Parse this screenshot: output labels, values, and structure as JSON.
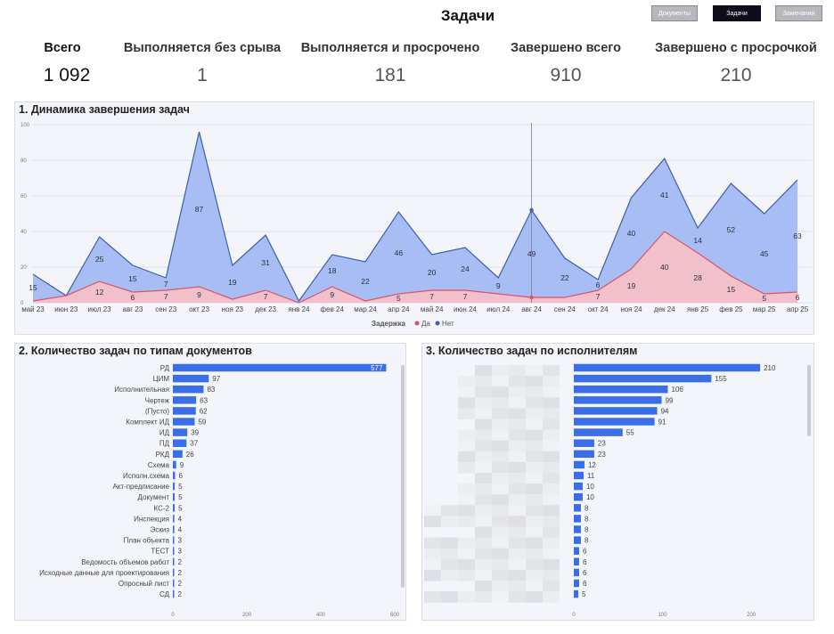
{
  "header": {
    "title": "Задачи",
    "buttons": [
      {
        "label": "Документы",
        "active": false
      },
      {
        "label": "Задачи",
        "active": true
      },
      {
        "label": "Замечания",
        "active": false
      }
    ]
  },
  "kpis": [
    {
      "label": "Всего",
      "value": "1 092"
    },
    {
      "label": "Выполняется без срыва",
      "value": "1"
    },
    {
      "label": "Выполняется и просрочено",
      "value": "181"
    },
    {
      "label": "Завершено всего",
      "value": "910"
    },
    {
      "label": "Завершено с просрочкой",
      "value": "210"
    }
  ],
  "colors": {
    "no_fill": "#a7bdf3",
    "no_line": "#3d5fa8",
    "yes_fill": "#f1c0cb",
    "yes_line": "#d9546a",
    "bar": "#3a6ee8"
  },
  "chart_data": [
    {
      "type": "area",
      "title": "1. Динамика завершения задач",
      "categories": [
        "май 23",
        "июн 23",
        "июл 23",
        "авг 23",
        "сен 23",
        "окт 23",
        "ноя 23",
        "дек 23",
        "янв 24",
        "фев 24",
        "мар 24",
        "апр 24",
        "май 24",
        "июн 24",
        "июл 24",
        "авг 24",
        "сен 24",
        "окт 24",
        "ноя 24",
        "дек 24",
        "янв 25",
        "фев 25",
        "мар 25",
        "апр 25"
      ],
      "series": [
        {
          "name": "Да",
          "values": [
            1,
            4,
            12,
            6,
            7,
            9,
            2,
            7,
            0,
            9,
            1,
            5,
            7,
            7,
            5,
            3,
            3,
            7,
            19,
            40,
            28,
            15,
            5,
            6
          ]
        },
        {
          "name": "Нет",
          "values": [
            15,
            0,
            25,
            15,
            7,
            87,
            19,
            31,
            1,
            18,
            22,
            46,
            20,
            24,
            9,
            49,
            22,
            6,
            40,
            41,
            14,
            52,
            45,
            63
          ]
        }
      ],
      "data_labels": {
        "Да": [
          "",
          "",
          "12",
          "6",
          "7",
          "9",
          "",
          "7",
          "",
          "9",
          "",
          "5",
          "7",
          "7",
          "",
          "",
          "",
          "7",
          "19",
          "40",
          "28",
          "15",
          "5",
          "6"
        ],
        "Нет": [
          "15",
          "",
          "25",
          "15",
          "7",
          "87",
          "19",
          "31",
          "",
          "18",
          "22",
          "46",
          "20",
          "24",
          "9",
          "49",
          "22",
          "6",
          "40",
          "41",
          "14",
          "52",
          "45",
          "63"
        ]
      },
      "stacked": true,
      "ylim": [
        0,
        100
      ],
      "yticks": [
        "0",
        "20",
        "40",
        "60",
        "80",
        "100"
      ],
      "legend_title": "Задержка",
      "legend_position": "bottom"
    },
    {
      "type": "bar",
      "orientation": "horizontal",
      "title": "2. Количество задач по типам документов",
      "categories": [
        "РД",
        "ЦИМ",
        "Исполнительная",
        "Чертеж",
        "(Пусто)",
        "Комплект ИД",
        "ИД",
        "ПД",
        "РКД",
        "Схема",
        "Исполн.схема",
        "Акт-предписание",
        "Документ",
        "КС-2",
        "Инспекция",
        "Эскиз",
        "План объекта",
        "ТЕСТ",
        "Ведомость объемов работ",
        "Исходные данные для проектирования",
        "Опросный лист",
        "СД"
      ],
      "values": [
        577,
        97,
        83,
        63,
        62,
        59,
        39,
        37,
        26,
        9,
        6,
        5,
        5,
        5,
        4,
        4,
        3,
        3,
        2,
        2,
        2,
        2
      ],
      "xlim": [
        0,
        600
      ],
      "xticks": [
        "0",
        "200",
        "400",
        "600"
      ]
    },
    {
      "type": "bar",
      "orientation": "horizontal",
      "title": "3. Количество задач по исполнителям",
      "values": [
        210,
        155,
        106,
        99,
        94,
        91,
        55,
        23,
        23,
        12,
        11,
        10,
        10,
        8,
        8,
        8,
        8,
        6,
        6,
        6,
        6,
        5
      ],
      "xlim": [
        0,
        230
      ],
      "xticks": [
        "0",
        "100",
        "200"
      ]
    }
  ]
}
